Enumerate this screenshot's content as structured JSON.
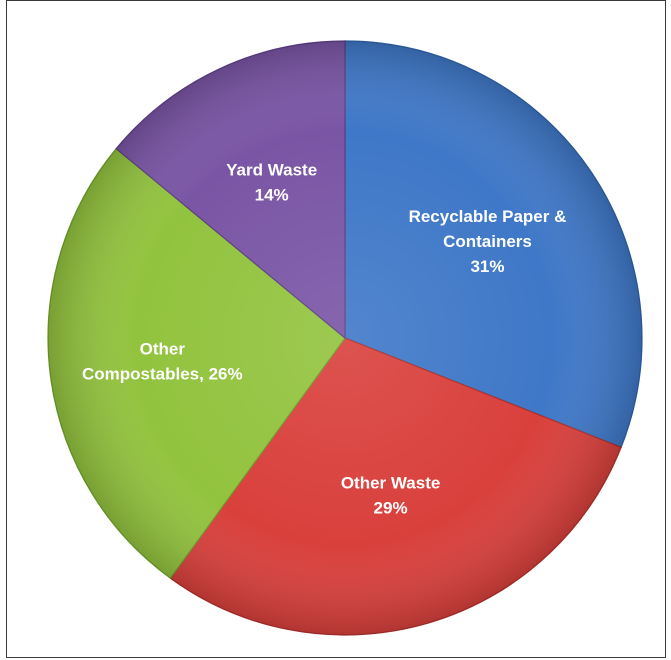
{
  "chart_data": {
    "type": "pie",
    "title": "",
    "start_angle_deg": 0,
    "direction": "clockwise",
    "slices": [
      {
        "label": "Recyclable Paper & Containers",
        "value": 31,
        "value_label": "31%",
        "label_lines": [
          "Recyclable Paper &",
          "Containers",
          "31%"
        ],
        "color": "#3f78c8",
        "edge_color": "#2e5e9f"
      },
      {
        "label": "Other Waste",
        "value": 29,
        "value_label": "29%",
        "label_lines": [
          "Other Waste",
          "29%"
        ],
        "color": "#d9403c",
        "edge_color": "#a82e2b"
      },
      {
        "label": "Other Compostables",
        "value": 26,
        "value_label": "26%",
        "label_lines": [
          "Other",
          "Compostables, 26%"
        ],
        "color": "#92c33e",
        "edge_color": "#6f9a2b"
      },
      {
        "label": "Yard Waste",
        "value": 14,
        "value_label": "14%",
        "label_lines": [
          "Yard Waste",
          "14%"
        ],
        "color": "#7a55a5",
        "edge_color": "#5b3d80"
      }
    ]
  }
}
